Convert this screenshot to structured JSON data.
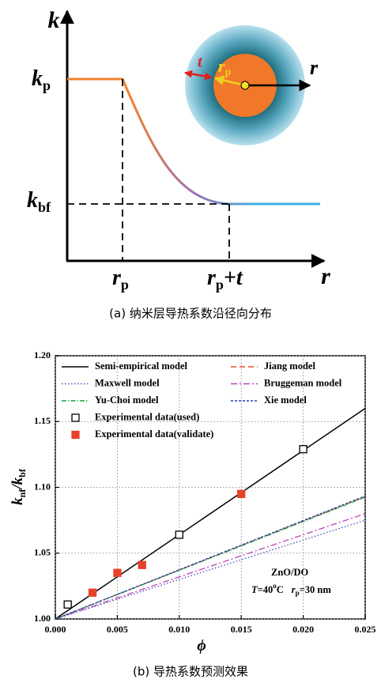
{
  "figure_a": {
    "y_axis_label": "k",
    "x_axis_label": "r",
    "kp": {
      "main": "k",
      "sub": "p"
    },
    "kbf": {
      "main": "k",
      "sub": "bf"
    },
    "rp": {
      "main": "r",
      "sub": "p"
    },
    "rpt": {
      "main": "r",
      "sub": "p",
      "tail": "+t"
    },
    "inset": {
      "t": "t",
      "rp_main": "r",
      "rp_sub": "p",
      "r": "r"
    },
    "caption": "(a) 纳米层导热系数沿径向分布"
  },
  "chart_data": {
    "type": "line",
    "xlabel": "ϕ",
    "ylabel": {
      "k1": "k",
      "sub1": "nf",
      "mid": "/k",
      "sub2": "bf"
    },
    "annotation": {
      "line1": "ZnO/DO",
      "t": "T",
      "temp": "=40",
      "deg": "o",
      "unit": "C",
      "r": "r",
      "rsub": "p",
      "size": "=30 nm"
    },
    "caption": "(b) 导热系数预测效果",
    "grid": true,
    "xlim": [
      0,
      0.025
    ],
    "ylim": [
      1.0,
      1.2
    ],
    "xticks": [
      {
        "value": 0,
        "label": "0.000"
      },
      {
        "value": 0.005,
        "label": "0.005"
      },
      {
        "value": 0.01,
        "label": "0.010"
      },
      {
        "value": 0.015,
        "label": "0.015"
      },
      {
        "value": 0.02,
        "label": "0.020"
      },
      {
        "value": 0.025,
        "label": "0.025"
      }
    ],
    "yticks": [
      {
        "value": 1.0,
        "label": "1.00"
      },
      {
        "value": 1.05,
        "label": "1.05"
      },
      {
        "value": 1.1,
        "label": "1.10"
      },
      {
        "value": 1.15,
        "label": "1.15"
      },
      {
        "value": 1.2,
        "label": "1.20"
      }
    ],
    "series": [
      {
        "name": "Semi-empirical  model",
        "color": "#000000",
        "dash": "none",
        "x": [
          0,
          0.025
        ],
        "values": [
          1.0,
          1.16
        ]
      },
      {
        "name": "Jiang model",
        "color": "#e8502a",
        "dash": "7 4",
        "x": [
          0,
          0.025
        ],
        "values": [
          1.0,
          1.093
        ]
      },
      {
        "name": "Maxwell model",
        "color": "#4a4ab8",
        "dash": "1.5 2.5",
        "x": [
          0,
          0.025
        ],
        "values": [
          1.0,
          1.075
        ]
      },
      {
        "name": "Bruggeman model",
        "color": "#c040c0",
        "dash": "8 3 2 3",
        "x": [
          0,
          0.025
        ],
        "values": [
          1.0,
          1.08
        ]
      },
      {
        "name": "Yu-Choi model",
        "color": "#20a040",
        "dash": "6 2 1.5 2",
        "x": [
          0,
          0.025
        ],
        "values": [
          1.0,
          1.0925
        ]
      },
      {
        "name": "Xie model",
        "color": "#2a3ab0",
        "dash": "3 2",
        "x": [
          0,
          0.025
        ],
        "values": [
          1.0,
          1.0935
        ]
      },
      {
        "name": "Experimental data(used)",
        "color": "#000000",
        "marker": "open-square",
        "x": [
          0.001,
          0.01,
          0.02
        ],
        "values": [
          1.011,
          1.064,
          1.129
        ]
      },
      {
        "name": "Experimental data(validate)",
        "color": "#e8402a",
        "marker": "filled-square",
        "x": [
          0.003,
          0.005,
          0.007,
          0.015
        ],
        "values": [
          1.02,
          1.035,
          1.041,
          1.095
        ]
      }
    ]
  }
}
